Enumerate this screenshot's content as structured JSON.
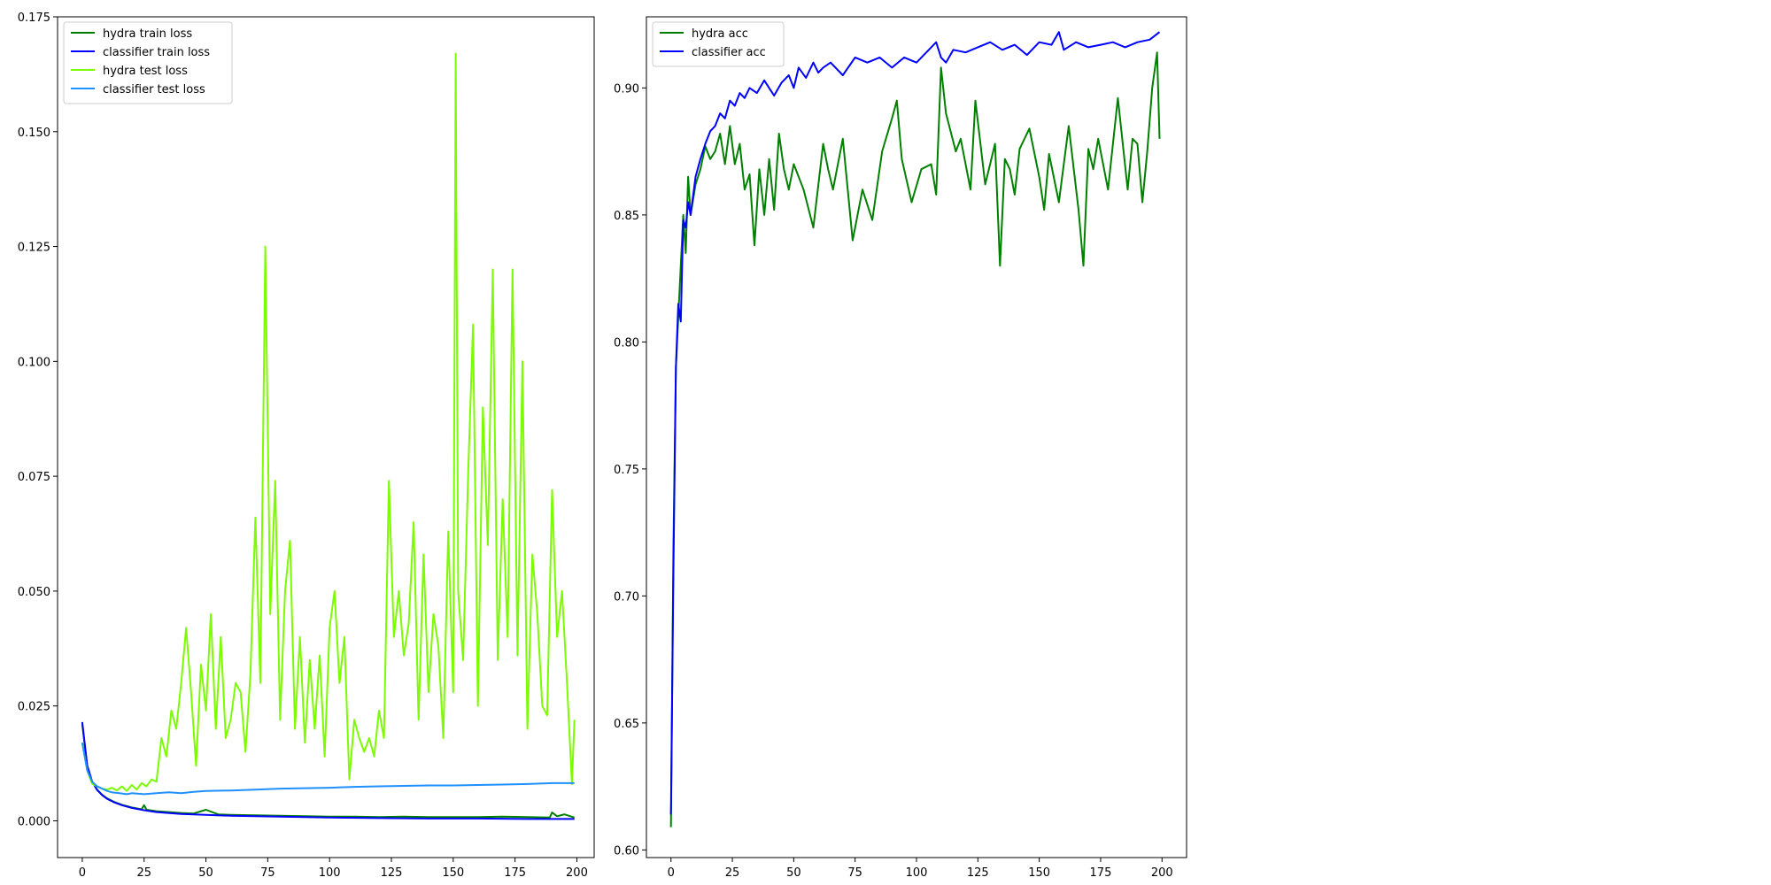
{
  "chart_data": [
    {
      "type": "line",
      "title": "",
      "xlabel": "",
      "ylabel": "",
      "xlim": [
        -10,
        207
      ],
      "ylim": [
        -0.008,
        0.175
      ],
      "xticks": [
        0,
        25,
        50,
        75,
        100,
        125,
        150,
        175,
        200
      ],
      "xtick_labels": [
        "0",
        "25",
        "50",
        "75",
        "100",
        "125",
        "150",
        "175",
        "200"
      ],
      "yticks": [
        0.0,
        0.025,
        0.05,
        0.075,
        0.1,
        0.125,
        0.15,
        0.175
      ],
      "ytick_labels": [
        "0.000",
        "0.025",
        "0.050",
        "0.075",
        "0.100",
        "0.125",
        "0.150",
        "0.175"
      ],
      "grid": false,
      "legend_position": "top-left",
      "series": [
        {
          "name": "hydra train loss",
          "color": "#008000",
          "x": [
            0,
            2,
            4,
            6,
            8,
            10,
            13,
            16,
            20,
            24,
            25,
            26,
            30,
            35,
            40,
            45,
            50,
            55,
            60,
            70,
            80,
            90,
            100,
            110,
            120,
            130,
            140,
            150,
            160,
            170,
            180,
            189,
            190,
            192,
            195,
            199
          ],
          "y": [
            0.021,
            0.012,
            0.0085,
            0.0068,
            0.0057,
            0.0049,
            0.0041,
            0.0035,
            0.0029,
            0.0025,
            0.0034,
            0.0024,
            0.0021,
            0.0019,
            0.0017,
            0.0016,
            0.0024,
            0.0014,
            0.0013,
            0.0012,
            0.0011,
            0.001,
            0.0009,
            0.0009,
            0.0008,
            0.0009,
            0.0008,
            0.0008,
            0.0008,
            0.0009,
            0.0008,
            0.0007,
            0.0018,
            0.001,
            0.0014,
            0.0007
          ]
        },
        {
          "name": "classifier train loss",
          "color": "#0000ff",
          "x": [
            0,
            2,
            4,
            6,
            8,
            10,
            13,
            16,
            20,
            25,
            30,
            40,
            50,
            60,
            70,
            80,
            90,
            100,
            120,
            140,
            160,
            180,
            199
          ],
          "y": [
            0.0215,
            0.012,
            0.0085,
            0.0067,
            0.0056,
            0.0048,
            0.004,
            0.0034,
            0.0028,
            0.0023,
            0.0019,
            0.0015,
            0.0013,
            0.0011,
            0.001,
            0.0009,
            0.0008,
            0.0007,
            0.0006,
            0.0005,
            0.0005,
            0.0004,
            0.0004
          ]
        },
        {
          "name": "hydra test loss",
          "color": "#7cfc00",
          "x": [
            0,
            2,
            4,
            6,
            8,
            10,
            12,
            14,
            16,
            18,
            20,
            22,
            24,
            26,
            28,
            30,
            32,
            34,
            36,
            38,
            40,
            42,
            44,
            46,
            48,
            50,
            52,
            54,
            56,
            58,
            60,
            62,
            64,
            66,
            68,
            70,
            72,
            74,
            76,
            78,
            80,
            82,
            84,
            86,
            88,
            90,
            92,
            94,
            96,
            98,
            100,
            102,
            104,
            106,
            108,
            110,
            112,
            114,
            116,
            118,
            120,
            122,
            124,
            126,
            128,
            130,
            132,
            134,
            136,
            138,
            140,
            142,
            144,
            146,
            148,
            150,
            151,
            152,
            154,
            156,
            158,
            160,
            162,
            164,
            166,
            168,
            170,
            172,
            174,
            176,
            178,
            180,
            182,
            184,
            186,
            188,
            190,
            192,
            194,
            196,
            198,
            199
          ],
          "y": [
            0.017,
            0.011,
            0.008,
            0.0075,
            0.007,
            0.0068,
            0.0072,
            0.0066,
            0.0075,
            0.0065,
            0.0078,
            0.0068,
            0.0082,
            0.0075,
            0.009,
            0.0085,
            0.018,
            0.014,
            0.024,
            0.02,
            0.03,
            0.042,
            0.028,
            0.012,
            0.034,
            0.024,
            0.045,
            0.02,
            0.04,
            0.018,
            0.022,
            0.03,
            0.028,
            0.015,
            0.032,
            0.066,
            0.03,
            0.125,
            0.045,
            0.074,
            0.022,
            0.05,
            0.061,
            0.02,
            0.04,
            0.017,
            0.035,
            0.02,
            0.036,
            0.014,
            0.042,
            0.05,
            0.03,
            0.04,
            0.009,
            0.022,
            0.018,
            0.015,
            0.018,
            0.014,
            0.024,
            0.018,
            0.074,
            0.04,
            0.05,
            0.036,
            0.043,
            0.065,
            0.022,
            0.058,
            0.028,
            0.045,
            0.038,
            0.018,
            0.063,
            0.028,
            0.167,
            0.05,
            0.035,
            0.075,
            0.108,
            0.025,
            0.09,
            0.06,
            0.12,
            0.035,
            0.07,
            0.04,
            0.12,
            0.036,
            0.1,
            0.02,
            0.058,
            0.045,
            0.025,
            0.023,
            0.072,
            0.04,
            0.05,
            0.03,
            0.008,
            0.022
          ]
        },
        {
          "name": "classifier test loss",
          "color": "#1e90ff",
          "x": [
            0,
            2,
            4,
            6,
            8,
            10,
            12,
            15,
            18,
            20,
            25,
            30,
            35,
            40,
            45,
            50,
            60,
            70,
            80,
            90,
            100,
            110,
            120,
            130,
            140,
            150,
            160,
            170,
            180,
            190,
            199
          ],
          "y": [
            0.017,
            0.011,
            0.0085,
            0.0075,
            0.007,
            0.0065,
            0.0062,
            0.006,
            0.0058,
            0.006,
            0.0058,
            0.006,
            0.0062,
            0.006,
            0.0063,
            0.0065,
            0.0066,
            0.0068,
            0.007,
            0.0071,
            0.0072,
            0.0074,
            0.0075,
            0.0076,
            0.0077,
            0.0077,
            0.0078,
            0.0079,
            0.008,
            0.0082,
            0.0082
          ]
        }
      ]
    },
    {
      "type": "line",
      "title": "",
      "xlabel": "",
      "ylabel": "",
      "xlim": [
        -10,
        210
      ],
      "ylim": [
        0.597,
        0.928
      ],
      "xticks": [
        0,
        25,
        50,
        75,
        100,
        125,
        150,
        175,
        200
      ],
      "xtick_labels": [
        "0",
        "25",
        "50",
        "75",
        "100",
        "125",
        "150",
        "175",
        "200"
      ],
      "yticks": [
        0.6,
        0.65,
        0.7,
        0.75,
        0.8,
        0.85,
        0.9
      ],
      "ytick_labels": [
        "0.60",
        "0.65",
        "0.70",
        "0.75",
        "0.80",
        "0.85",
        "0.90"
      ],
      "grid": false,
      "legend_position": "top-left",
      "series": [
        {
          "name": "hydra acc",
          "color": "#008000",
          "x": [
            0,
            1,
            2,
            3,
            4,
            5,
            6,
            7,
            8,
            10,
            12,
            14,
            16,
            18,
            20,
            22,
            24,
            26,
            28,
            30,
            32,
            34,
            36,
            38,
            40,
            42,
            44,
            46,
            48,
            50,
            54,
            58,
            62,
            64,
            66,
            70,
            74,
            78,
            82,
            86,
            90,
            92,
            94,
            98,
            102,
            106,
            108,
            110,
            112,
            116,
            118,
            122,
            124,
            128,
            132,
            134,
            136,
            138,
            140,
            142,
            146,
            150,
            152,
            154,
            158,
            162,
            166,
            168,
            170,
            172,
            174,
            178,
            182,
            186,
            188,
            190,
            192,
            194,
            196,
            198,
            199
          ],
          "y": [
            0.609,
            0.72,
            0.79,
            0.81,
            0.83,
            0.85,
            0.835,
            0.865,
            0.85,
            0.862,
            0.868,
            0.877,
            0.872,
            0.875,
            0.882,
            0.87,
            0.885,
            0.87,
            0.878,
            0.86,
            0.866,
            0.838,
            0.868,
            0.85,
            0.872,
            0.852,
            0.882,
            0.868,
            0.86,
            0.87,
            0.86,
            0.845,
            0.878,
            0.868,
            0.86,
            0.88,
            0.84,
            0.86,
            0.848,
            0.875,
            0.888,
            0.895,
            0.872,
            0.855,
            0.868,
            0.87,
            0.858,
            0.908,
            0.89,
            0.875,
            0.88,
            0.86,
            0.895,
            0.862,
            0.878,
            0.83,
            0.872,
            0.868,
            0.858,
            0.876,
            0.884,
            0.865,
            0.852,
            0.874,
            0.855,
            0.885,
            0.852,
            0.83,
            0.876,
            0.868,
            0.88,
            0.86,
            0.896,
            0.86,
            0.88,
            0.878,
            0.855,
            0.875,
            0.9,
            0.914,
            0.88
          ]
        },
        {
          "name": "classifier acc",
          "color": "#0000ff",
          "x": [
            0,
            1,
            2,
            3,
            4,
            5,
            6,
            7,
            8,
            10,
            12,
            14,
            16,
            18,
            20,
            22,
            24,
            26,
            28,
            30,
            32,
            35,
            38,
            40,
            42,
            45,
            48,
            50,
            52,
            55,
            58,
            60,
            62,
            65,
            70,
            75,
            80,
            85,
            90,
            95,
            100,
            105,
            108,
            110,
            112,
            115,
            120,
            125,
            130,
            135,
            140,
            145,
            150,
            155,
            158,
            160,
            165,
            170,
            175,
            180,
            185,
            190,
            195,
            199
          ],
          "y": [
            0.614,
            0.71,
            0.79,
            0.815,
            0.808,
            0.848,
            0.845,
            0.855,
            0.85,
            0.865,
            0.872,
            0.878,
            0.883,
            0.885,
            0.89,
            0.888,
            0.895,
            0.893,
            0.898,
            0.896,
            0.9,
            0.898,
            0.903,
            0.9,
            0.897,
            0.902,
            0.905,
            0.9,
            0.908,
            0.904,
            0.91,
            0.906,
            0.908,
            0.91,
            0.905,
            0.912,
            0.91,
            0.912,
            0.908,
            0.912,
            0.91,
            0.915,
            0.918,
            0.912,
            0.91,
            0.915,
            0.914,
            0.916,
            0.918,
            0.915,
            0.917,
            0.913,
            0.918,
            0.917,
            0.922,
            0.915,
            0.918,
            0.916,
            0.917,
            0.918,
            0.916,
            0.918,
            0.919,
            0.922
          ]
        }
      ]
    }
  ]
}
